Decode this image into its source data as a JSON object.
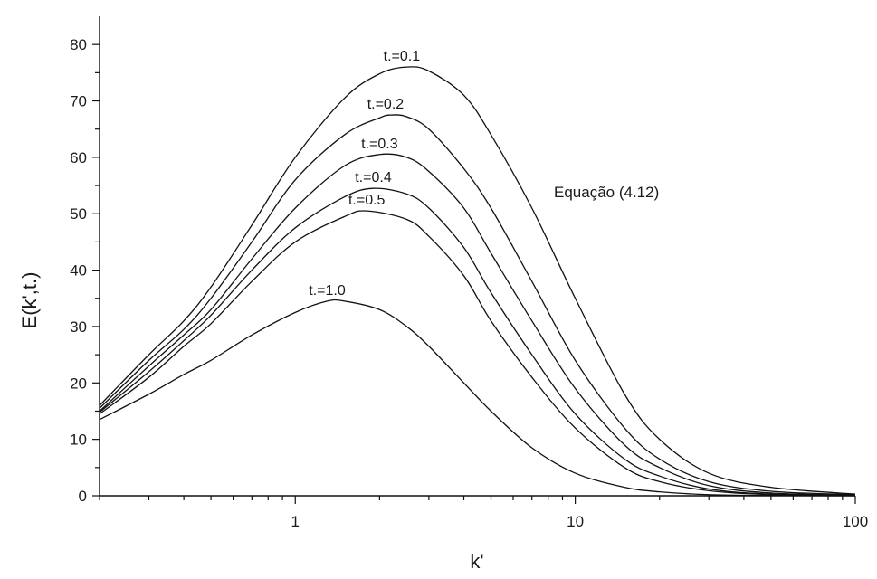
{
  "chart_data": {
    "type": "line",
    "xlabel": "k'",
    "ylabel": "E(k',t.)",
    "xscale": "log",
    "xlim": [
      0.2,
      100
    ],
    "ylim": [
      0,
      85
    ],
    "x_ticks": [
      1,
      10,
      100
    ],
    "x_tick_labels": [
      "1",
      "10",
      "100"
    ],
    "y_ticks": [
      0,
      10,
      20,
      30,
      40,
      50,
      60,
      70,
      80
    ],
    "y_tick_labels": [
      "0",
      "10",
      "20",
      "30",
      "40",
      "50",
      "60",
      "70",
      "80"
    ],
    "grid": false,
    "legend": "none",
    "annotation": "Equação (4.12)",
    "series": [
      {
        "name": "t.=0.1",
        "label_at": [
          2.4,
          76
        ],
        "x": [
          0.2,
          0.3,
          0.4,
          0.5,
          0.7,
          1.0,
          1.5,
          2.0,
          2.5,
          3.0,
          4.0,
          5.0,
          7.0,
          10,
          15,
          20,
          30,
          50,
          100
        ],
        "y": [
          16.0,
          25,
          31,
          37,
          48,
          60,
          70.5,
          74.8,
          76,
          75.3,
          71,
          64,
          51,
          35,
          18,
          10,
          4,
          1.5,
          0.3
        ]
      },
      {
        "name": "t.=0.2",
        "label_at": [
          2.1,
          67.5
        ],
        "x": [
          0.2,
          0.3,
          0.4,
          0.5,
          0.7,
          1.0,
          1.5,
          2.0,
          2.2,
          2.5,
          3.0,
          4.0,
          5.0,
          7.0,
          10,
          15,
          20,
          30,
          50,
          100
        ],
        "y": [
          15.5,
          24,
          29.5,
          35,
          45,
          56,
          64,
          67,
          67.5,
          67.2,
          65,
          58,
          51,
          38,
          24,
          12,
          6.5,
          2.5,
          0.8,
          0.2
        ]
      },
      {
        "name": "t.=0.3",
        "label_at": [
          2.0,
          60.5
        ],
        "x": [
          0.2,
          0.3,
          0.4,
          0.5,
          0.7,
          1.0,
          1.5,
          2.0,
          2.5,
          3.0,
          4.0,
          5.0,
          7.0,
          10,
          15,
          20,
          30,
          50,
          100
        ],
        "y": [
          15.0,
          23,
          28.5,
          33,
          42,
          51,
          58.5,
          60.5,
          60,
          57.5,
          51,
          43,
          31,
          19,
          9,
          5,
          1.8,
          0.5,
          0.1
        ]
      },
      {
        "name": "t.=0.4",
        "label_at": [
          1.9,
          54.5
        ],
        "x": [
          0.2,
          0.3,
          0.4,
          0.5,
          0.7,
          1.0,
          1.5,
          1.9,
          2.5,
          3.0,
          4.0,
          5.0,
          7.0,
          10,
          15,
          20,
          30,
          50,
          100
        ],
        "y": [
          14.8,
          22,
          27.5,
          32,
          40,
          47.5,
          53,
          54.5,
          53.5,
          51,
          44,
          36,
          25,
          14.5,
          6.5,
          3.5,
          1.2,
          0.3,
          0.1
        ]
      },
      {
        "name": "t.=0.5",
        "label_at": [
          1.8,
          50.5
        ],
        "x": [
          0.2,
          0.3,
          0.4,
          0.5,
          0.7,
          1.0,
          1.5,
          1.8,
          2.5,
          3.0,
          4.0,
          5.0,
          7.0,
          10,
          15,
          20,
          30,
          50,
          100
        ],
        "y": [
          14.5,
          21,
          26.5,
          30.5,
          38,
          45,
          49.5,
          50.5,
          49,
          46,
          39,
          31,
          21,
          12,
          5,
          2.5,
          0.9,
          0.2,
          0.05
        ]
      },
      {
        "name": "t.=1.0",
        "label_at": [
          1.3,
          34.5
        ],
        "x": [
          0.2,
          0.3,
          0.4,
          0.5,
          0.7,
          1.0,
          1.3,
          1.5,
          2.0,
          2.5,
          3.0,
          4.0,
          5.0,
          7.0,
          10,
          15,
          20,
          30,
          50,
          100
        ],
        "y": [
          13.5,
          18,
          21.5,
          24,
          28.5,
          32.5,
          34.5,
          34.5,
          33,
          30,
          26.5,
          20,
          15,
          8.5,
          4,
          1.5,
          0.7,
          0.2,
          0.05,
          0.0
        ]
      }
    ]
  }
}
